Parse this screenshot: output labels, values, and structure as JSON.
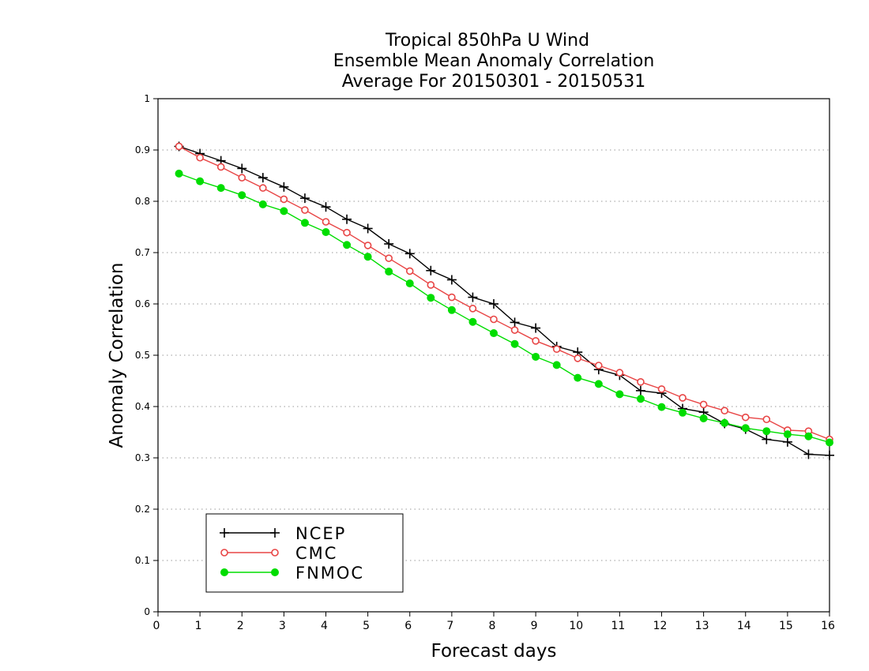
{
  "chart_data": {
    "type": "line",
    "title": [
      "Tropical 850hPa U Wind",
      "Ensemble Mean Anomaly Correlation",
      "Average For 20150301 - 20150531"
    ],
    "xlabel": "Forecast days",
    "ylabel": "Anomaly Correlation",
    "xlim": [
      0,
      16
    ],
    "ylim": [
      0,
      1
    ],
    "xticks": [
      0,
      1,
      2,
      3,
      4,
      5,
      6,
      7,
      8,
      9,
      10,
      11,
      12,
      13,
      14,
      15,
      16
    ],
    "yticks": [
      0,
      0.1,
      0.2,
      0.3,
      0.4,
      0.5,
      0.6,
      0.7,
      0.8,
      0.9,
      1
    ],
    "ytick_labels": [
      "0",
      "0.1",
      "0.2",
      "0.3",
      "0.4",
      "0.5",
      "0.6",
      "0.7",
      "0.8",
      "0.9",
      "1"
    ],
    "grid": "horizontal dotted",
    "legend_position": "bottom-left",
    "x": [
      0.5,
      1,
      1.5,
      2,
      2.5,
      3,
      3.5,
      4,
      4.5,
      5,
      5.5,
      6,
      6.5,
      7,
      7.5,
      8,
      8.5,
      9,
      9.5,
      10,
      10.5,
      11,
      11.5,
      12,
      12.5,
      13,
      13.5,
      14,
      14.5,
      15,
      15.5,
      16
    ],
    "series": [
      {
        "name": "NCEP",
        "color": "#000000",
        "marker": "plus",
        "values": [
          0.907,
          0.893,
          0.879,
          0.864,
          0.846,
          0.828,
          0.806,
          0.789,
          0.765,
          0.747,
          0.717,
          0.698,
          0.665,
          0.647,
          0.613,
          0.6,
          0.564,
          0.553,
          0.517,
          0.506,
          0.472,
          0.461,
          0.431,
          0.426,
          0.396,
          0.389,
          0.367,
          0.356,
          0.336,
          0.331,
          0.307,
          0.305
        ]
      },
      {
        "name": "CMC",
        "color": "#e84545",
        "marker": "open-circle",
        "values": [
          0.907,
          0.885,
          0.867,
          0.846,
          0.826,
          0.804,
          0.783,
          0.76,
          0.739,
          0.714,
          0.689,
          0.664,
          0.637,
          0.613,
          0.591,
          0.57,
          0.549,
          0.528,
          0.512,
          0.494,
          0.48,
          0.466,
          0.448,
          0.434,
          0.417,
          0.404,
          0.392,
          0.379,
          0.375,
          0.354,
          0.352,
          0.336
        ]
      },
      {
        "name": "FNMOC",
        "color": "#00dd00",
        "marker": "filled-circle",
        "values": [
          0.854,
          0.839,
          0.826,
          0.812,
          0.794,
          0.781,
          0.758,
          0.74,
          0.715,
          0.692,
          0.663,
          0.64,
          0.612,
          0.588,
          0.565,
          0.543,
          0.522,
          0.497,
          0.481,
          0.456,
          0.444,
          0.424,
          0.415,
          0.399,
          0.388,
          0.377,
          0.368,
          0.358,
          0.352,
          0.346,
          0.342,
          0.33
        ]
      }
    ]
  }
}
